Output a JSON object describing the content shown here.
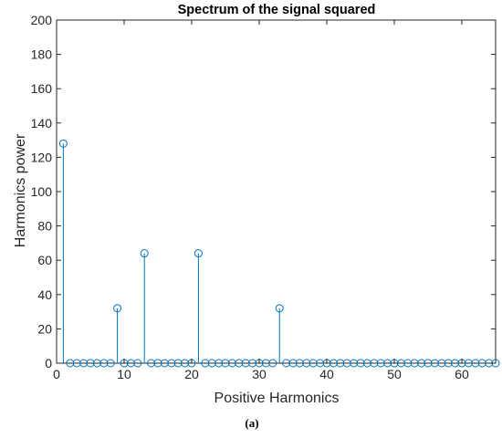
{
  "chart_data": {
    "type": "stem",
    "title": "Spectrum of the signal squared",
    "xlabel": "Positive Harmonics",
    "ylabel": "Harmonics power",
    "xlim": [
      0,
      65
    ],
    "ylim": [
      0,
      200
    ],
    "xticks": [
      0,
      10,
      20,
      30,
      40,
      50,
      60
    ],
    "yticks": [
      0,
      20,
      40,
      60,
      80,
      100,
      120,
      140,
      160,
      180,
      200
    ],
    "grid": false,
    "box": true,
    "series": [
      {
        "color": "#0072BD",
        "marker": "circle",
        "x": [
          1,
          2,
          3,
          4,
          5,
          6,
          7,
          8,
          9,
          10,
          11,
          12,
          13,
          14,
          15,
          16,
          17,
          18,
          19,
          20,
          21,
          22,
          23,
          24,
          25,
          26,
          27,
          28,
          29,
          30,
          31,
          32,
          33,
          34,
          35,
          36,
          37,
          38,
          39,
          40,
          41,
          42,
          43,
          44,
          45,
          46,
          47,
          48,
          49,
          50,
          51,
          52,
          53,
          54,
          55,
          56,
          57,
          58,
          59,
          60,
          61,
          62,
          63,
          64,
          65
        ],
        "y": [
          128,
          0,
          0,
          0,
          0,
          0,
          0,
          0,
          32,
          0,
          0,
          0,
          64,
          0,
          0,
          0,
          0,
          0,
          0,
          0,
          64,
          0,
          0,
          0,
          0,
          0,
          0,
          0,
          0,
          0,
          0,
          0,
          32,
          0,
          0,
          0,
          0,
          0,
          0,
          0,
          0,
          0,
          0,
          0,
          0,
          0,
          0,
          0,
          0,
          0,
          0,
          0,
          0,
          0,
          0,
          0,
          0,
          0,
          0,
          0,
          0,
          0,
          0,
          0,
          0
        ]
      }
    ]
  },
  "caption": "(a)"
}
